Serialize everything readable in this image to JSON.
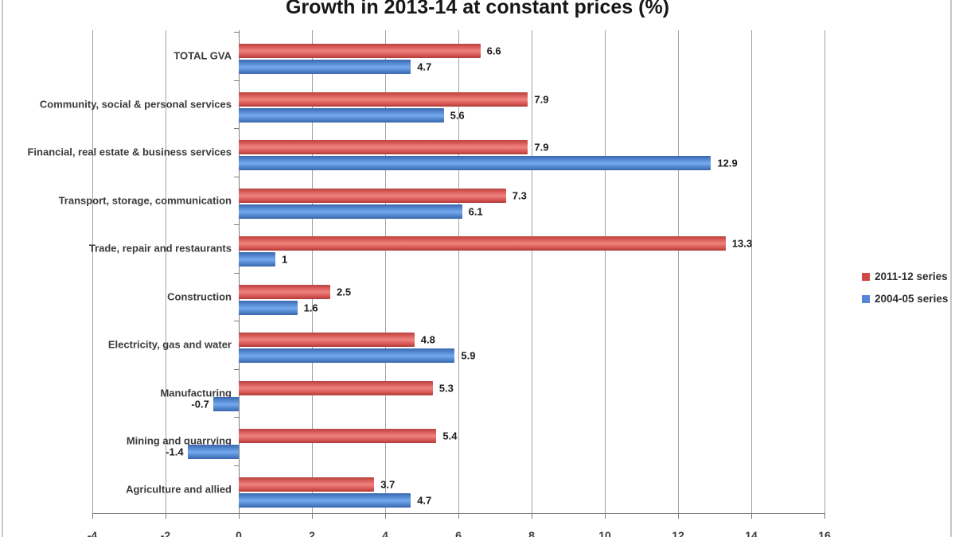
{
  "title": "Growth in 2013-14 at constant prices (%)",
  "chart_data": {
    "type": "bar",
    "orientation": "horizontal",
    "title": "Growth in 2013-14 at constant prices (%)",
    "categories": [
      "TOTAL GVA",
      "Community, social & personal services",
      "Financial, real estate & business services",
      "Transport, storage, communication",
      "Trade, repair and restaurants",
      "Construction",
      "Electricity, gas and water",
      "Manufacturing",
      "Mining and quarrying",
      "Agriculture and allied"
    ],
    "series": [
      {
        "name": "2011-12 series",
        "color": "#cf4a47",
        "values": [
          6.6,
          7.9,
          7.9,
          7.3,
          13.3,
          2.5,
          4.8,
          5.3,
          5.4,
          3.7
        ],
        "labels": [
          "6.6",
          "7.9",
          "7.9",
          "7.3",
          "13.3",
          "2.5",
          "4.8",
          "5.3",
          "5.4",
          "3.7"
        ]
      },
      {
        "name": "2004-05 series",
        "color": "#5585d6",
        "values": [
          4.7,
          5.6,
          12.9,
          6.1,
          1,
          1.6,
          5.9,
          -0.7,
          -1.4,
          4.7
        ],
        "labels": [
          "4.7",
          "5.6",
          "12.9",
          "6.1",
          "1",
          "1.6",
          "5.9",
          "-0.7",
          "-1.4",
          "4.7"
        ]
      }
    ],
    "xlim": [
      -4,
      16
    ],
    "x_ticks": [
      -4,
      -2,
      0,
      2,
      4,
      6,
      8,
      10,
      12,
      14,
      16
    ],
    "grid": "vertical",
    "legend_position": "right"
  }
}
